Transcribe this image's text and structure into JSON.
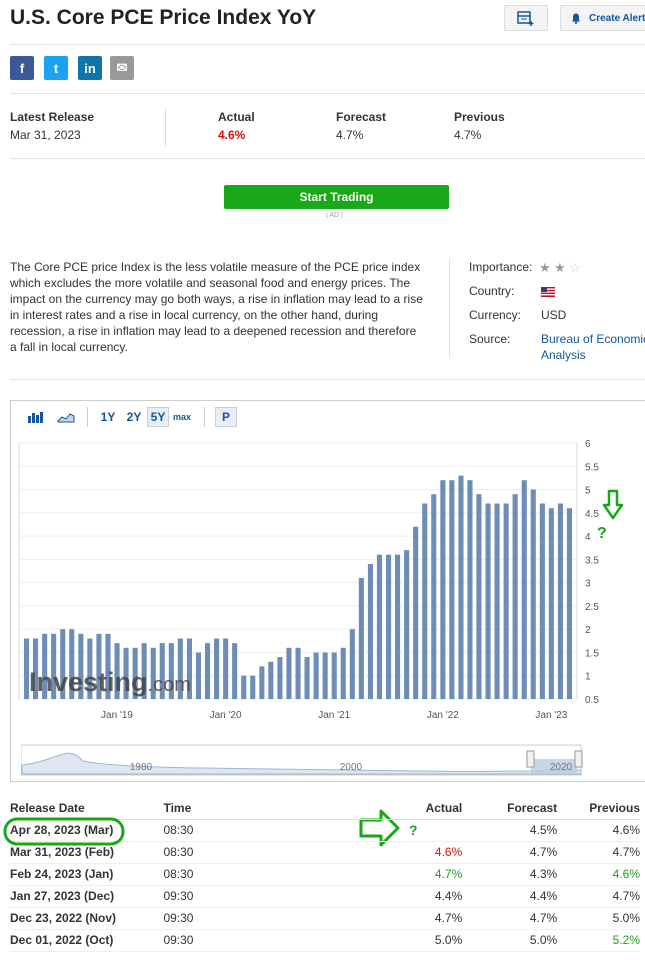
{
  "page": {
    "title": "U.S. Core PCE Price Index YoY",
    "alert_label": "Create Alert"
  },
  "social": [
    {
      "name": "facebook",
      "glyph": "f",
      "color": "#3b5998"
    },
    {
      "name": "twitter",
      "glyph": "t",
      "color": "#1da1f2"
    },
    {
      "name": "linkedin",
      "glyph": "in",
      "color": "#0e76a8"
    },
    {
      "name": "email",
      "glyph": "✉",
      "color": "#999999"
    }
  ],
  "release": {
    "latest_label": "Latest Release",
    "latest_date": "Mar 31, 2023",
    "actual_label": "Actual",
    "actual": "4.6%",
    "forecast_label": "Forecast",
    "forecast": "4.7%",
    "previous_label": "Previous",
    "previous": "4.7%"
  },
  "cta": {
    "label": "Start Trading",
    "ad": "| AD |"
  },
  "description": "The Core PCE price Index is the less volatile measure of the PCE price index which excludes the more volatile and seasonal food and energy prices. The impact on the currency may go both ways, a rise in inflation may lead to a rise in interest rates and a rise in local currency, on the other hand, during recession, a rise in inflation may lead to a deepened recession and therefore a fall in local currency.",
  "info": {
    "importance_label": "Importance:",
    "importance_stars": 2,
    "importance_max": 3,
    "country_label": "Country:",
    "country_flag": "us-flag-icon",
    "currency_label": "Currency:",
    "currency": "USD",
    "source_label": "Source:",
    "source_line1": "Bureau of Economic",
    "source_line2": "Analysis"
  },
  "chart_toolbar": {
    "ranges": [
      "1Y",
      "2Y",
      "5Y",
      "max"
    ],
    "selected": "5Y",
    "p_label": "P"
  },
  "chart_data": {
    "type": "bar",
    "ylim": [
      0.5,
      6
    ],
    "y_ticks": [
      "6",
      "5.5",
      "5",
      "4.5",
      "4",
      "3.5",
      "3",
      "2.5",
      "2",
      "1.5",
      "1",
      "0.5"
    ],
    "x_ticks": [
      "Jan '19",
      "Jan '20",
      "Jan '21",
      "Jan '22",
      "Jan '23"
    ],
    "values": [
      1.8,
      1.8,
      1.9,
      1.9,
      2.0,
      2.0,
      1.9,
      1.8,
      1.9,
      1.9,
      1.7,
      1.6,
      1.6,
      1.7,
      1.6,
      1.7,
      1.7,
      1.8,
      1.8,
      1.5,
      1.7,
      1.8,
      1.8,
      1.7,
      1.0,
      1.0,
      1.2,
      1.3,
      1.4,
      1.6,
      1.6,
      1.4,
      1.5,
      1.5,
      1.5,
      1.6,
      2.0,
      3.1,
      3.4,
      3.6,
      3.6,
      3.6,
      3.7,
      4.2,
      4.7,
      4.9,
      5.2,
      5.2,
      5.3,
      5.2,
      4.9,
      4.7,
      4.7,
      4.7,
      4.9,
      5.2,
      5.0,
      4.7,
      4.6,
      4.7,
      4.6
    ],
    "navigator_ticks": [
      "1980",
      "2000",
      "2020"
    ],
    "watermark": "Investing",
    "watermark_suffix": ".com",
    "bar_color": "#6e8db6"
  },
  "table": {
    "headers": [
      "Release Date",
      "Time",
      "Actual",
      "Forecast",
      "Previous"
    ],
    "rows": [
      {
        "date": "Apr 28, 2023 (Mar)",
        "time": "08:30",
        "actual": "",
        "forecast": "4.5%",
        "previous": "4.6%",
        "actual_color": "",
        "previous_color": ""
      },
      {
        "date": "Mar 31, 2023 (Feb)",
        "time": "08:30",
        "actual": "4.6%",
        "forecast": "4.7%",
        "previous": "4.7%",
        "actual_color": "red",
        "previous_color": ""
      },
      {
        "date": "Feb 24, 2023 (Jan)",
        "time": "08:30",
        "actual": "4.7%",
        "forecast": "4.3%",
        "previous": "4.6%",
        "actual_color": "green",
        "previous_color": "green"
      },
      {
        "date": "Jan 27, 2023 (Dec)",
        "time": "09:30",
        "actual": "4.4%",
        "forecast": "4.4%",
        "previous": "4.7%",
        "actual_color": "",
        "previous_color": ""
      },
      {
        "date": "Dec 23, 2022 (Nov)",
        "time": "09:30",
        "actual": "4.7%",
        "forecast": "4.7%",
        "previous": "5.0%",
        "actual_color": "",
        "previous_color": ""
      },
      {
        "date": "Dec 01, 2022 (Oct)",
        "time": "09:30",
        "actual": "5.0%",
        "forecast": "5.0%",
        "previous": "5.2%",
        "actual_color": "",
        "previous_color": "green"
      }
    ]
  },
  "annotations": {
    "question_mark": "?"
  }
}
